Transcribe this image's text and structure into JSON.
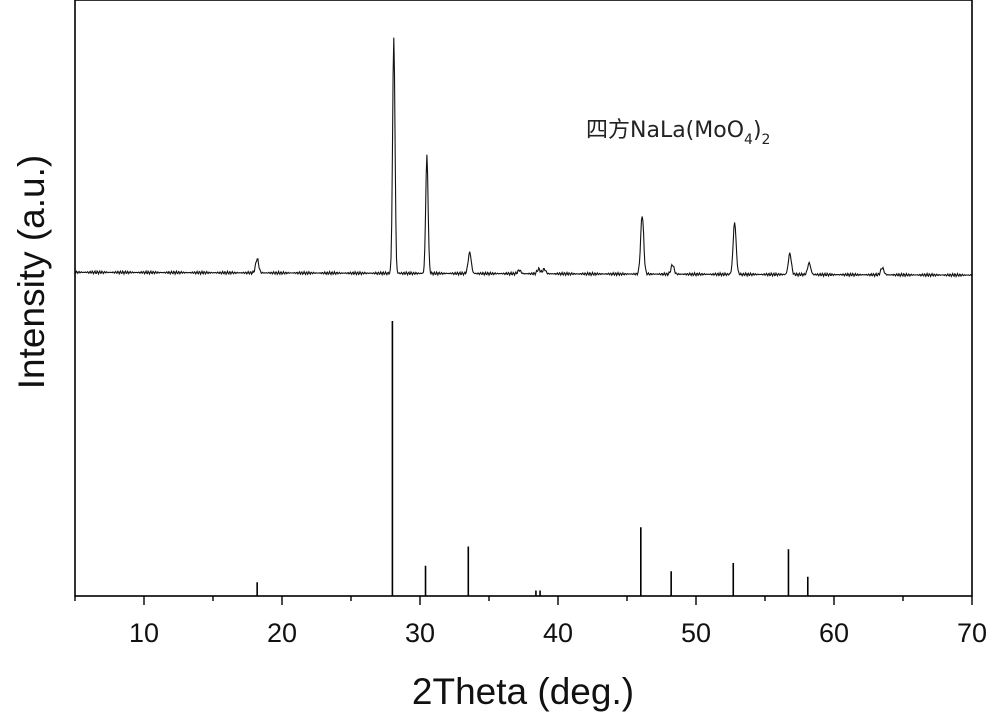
{
  "chart_data": {
    "type": "line",
    "xlabel": "2Theta (deg.)",
    "ylabel": "Intensity (a.u.)",
    "xlim": [
      5,
      70
    ],
    "x_ticks": [
      10,
      20,
      30,
      40,
      50,
      60,
      70
    ],
    "y_ticks_shown": false,
    "grid": false,
    "annotation": {
      "text_main": "四方NaLa(MoO",
      "sub1": "4",
      "close": ")",
      "sub2": "2"
    },
    "series": [
      {
        "kind": "measured-pattern",
        "baseline": 0.02,
        "peaks": [
          {
            "x": 18.2,
            "y": 0.06
          },
          {
            "x": 28.1,
            "y": 1.0
          },
          {
            "x": 30.5,
            "y": 0.5
          },
          {
            "x": 33.6,
            "y": 0.09
          },
          {
            "x": 37.2,
            "y": 0.015
          },
          {
            "x": 38.6,
            "y": 0.02
          },
          {
            "x": 39.0,
            "y": 0.02
          },
          {
            "x": 46.1,
            "y": 0.25
          },
          {
            "x": 48.3,
            "y": 0.04
          },
          {
            "x": 52.8,
            "y": 0.22
          },
          {
            "x": 56.8,
            "y": 0.09
          },
          {
            "x": 58.2,
            "y": 0.05
          },
          {
            "x": 63.5,
            "y": 0.03
          }
        ]
      },
      {
        "kind": "reference-sticks",
        "sticks": [
          {
            "x": 18.2,
            "y": 0.05
          },
          {
            "x": 28.0,
            "y": 1.0
          },
          {
            "x": 30.4,
            "y": 0.11
          },
          {
            "x": 33.5,
            "y": 0.18
          },
          {
            "x": 38.4,
            "y": 0.02
          },
          {
            "x": 38.7,
            "y": 0.02
          },
          {
            "x": 46.0,
            "y": 0.25
          },
          {
            "x": 48.2,
            "y": 0.09
          },
          {
            "x": 52.7,
            "y": 0.12
          },
          {
            "x": 56.7,
            "y": 0.17
          },
          {
            "x": 58.1,
            "y": 0.07
          }
        ]
      }
    ]
  }
}
